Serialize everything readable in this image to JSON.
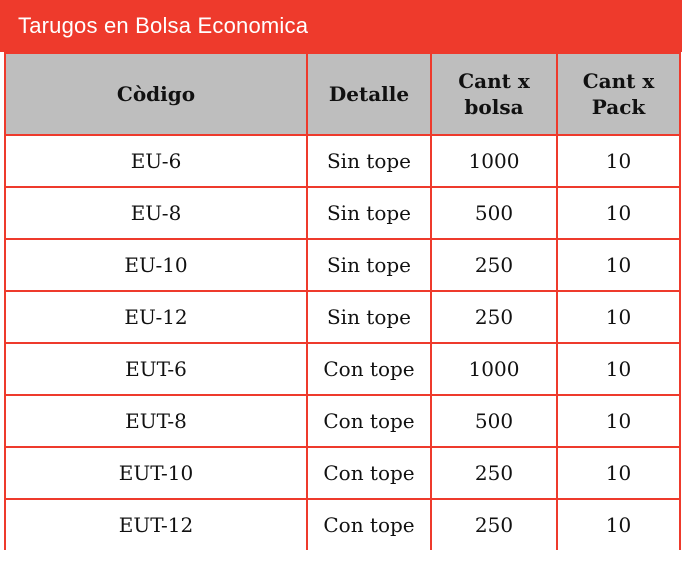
{
  "title": "Tarugos en Bolsa Economica",
  "colors": {
    "accent_red": "#ee3a2c",
    "header_gray": "#bebebe"
  },
  "table": {
    "headers": [
      "Còdigo",
      "Detalle",
      "Cant x\nbolsa",
      "Cant x\nPack"
    ],
    "rows": [
      [
        "EU-6",
        "Sin tope",
        "1000",
        "10"
      ],
      [
        "EU-8",
        "Sin tope",
        "500",
        "10"
      ],
      [
        "EU-10",
        "Sin tope",
        "250",
        "10"
      ],
      [
        "EU-12",
        "Sin tope",
        "250",
        "10"
      ],
      [
        "EUT-6",
        "Con tope",
        "1000",
        "10"
      ],
      [
        "EUT-8",
        "Con tope",
        "500",
        "10"
      ],
      [
        "EUT-10",
        "Con tope",
        "250",
        "10"
      ],
      [
        "EUT-12",
        "Con tope",
        "250",
        "10"
      ]
    ]
  }
}
